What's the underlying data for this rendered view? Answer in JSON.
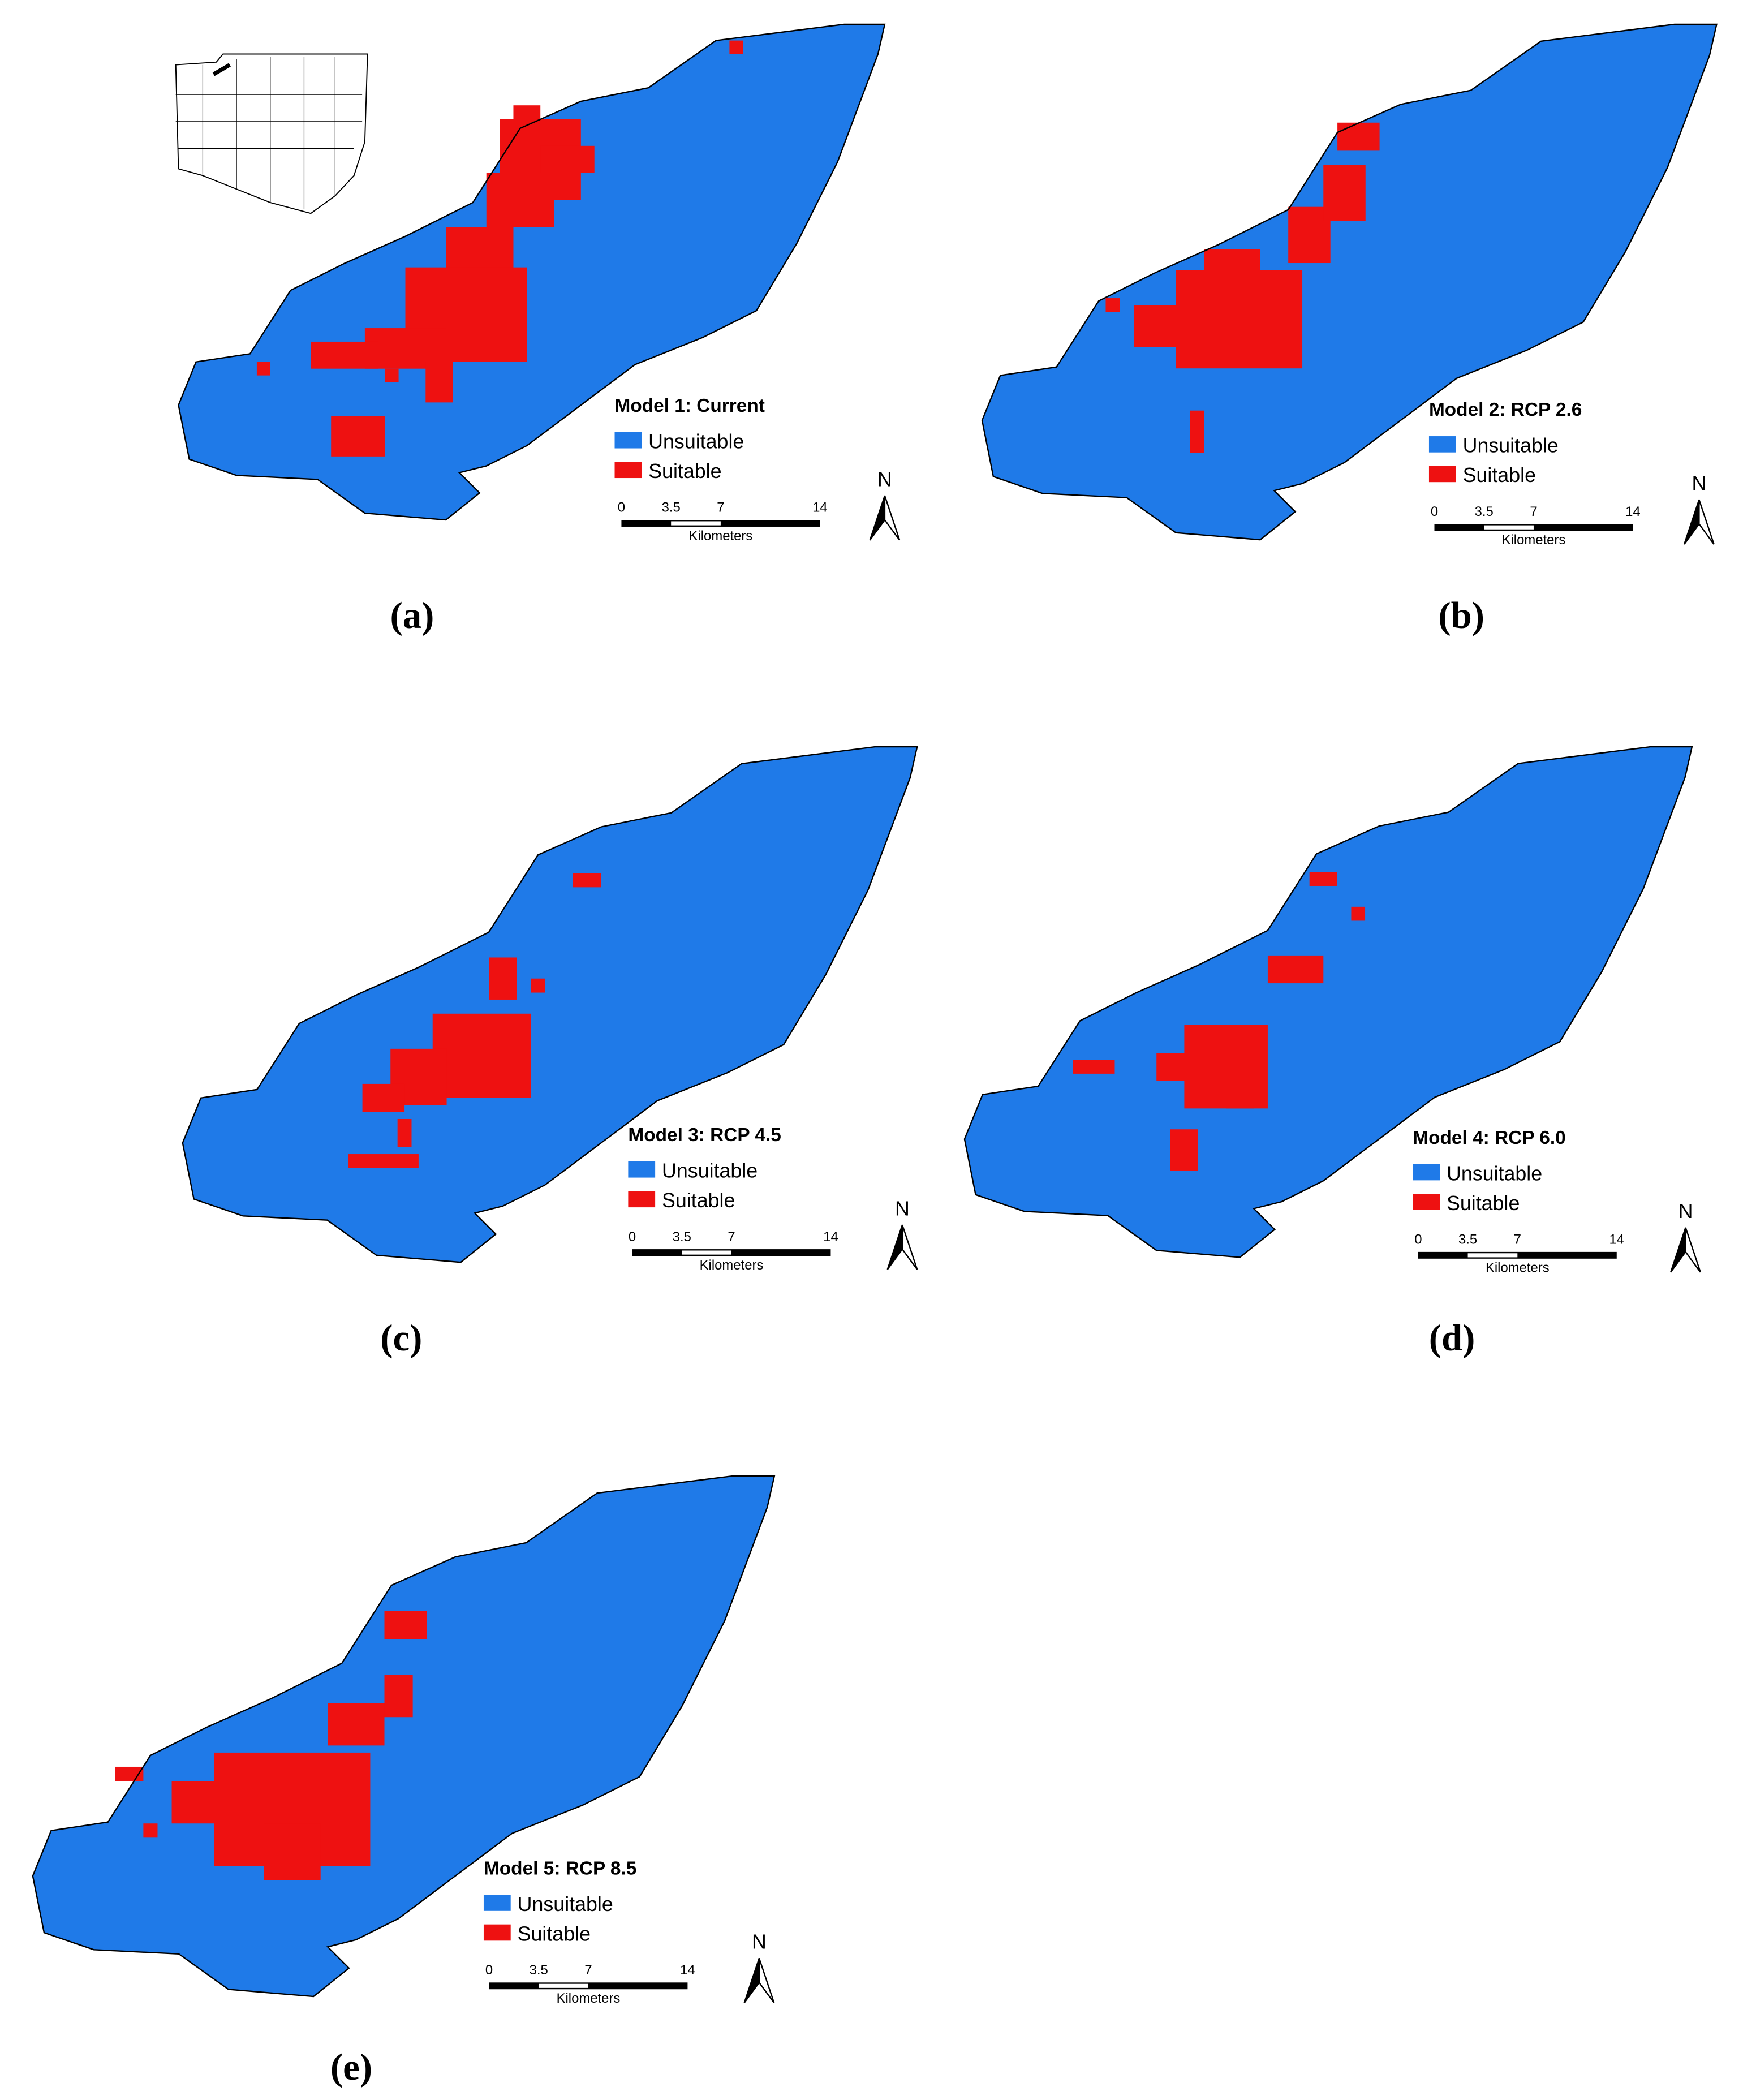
{
  "panels": [
    {
      "label": "(a)",
      "title": "Model 1: Current",
      "legend": [
        "Unsuitable",
        "Suitable"
      ],
      "scale": {
        "ticks": [
          0,
          3.5,
          7,
          14
        ],
        "unit": "Kilometers"
      },
      "north": "N"
    },
    {
      "label": "(b)",
      "title": "Model 2: RCP 2.6",
      "legend": [
        "Unsuitable",
        "Suitable"
      ],
      "scale": {
        "ticks": [
          0,
          3.5,
          7,
          14
        ],
        "unit": "Kilometers"
      },
      "north": "N"
    },
    {
      "label": "(c)",
      "title": "Model 3: RCP 4.5",
      "legend": [
        "Unsuitable",
        "Suitable"
      ],
      "scale": {
        "ticks": [
          0,
          3.5,
          7,
          14
        ],
        "unit": "Kilometers"
      },
      "north": "N"
    },
    {
      "label": "(d)",
      "title": "Model 4: RCP 6.0",
      "legend": [
        "Unsuitable",
        "Suitable"
      ],
      "scale": {
        "ticks": [
          0,
          3.5,
          7,
          14
        ],
        "unit": "Kilometers"
      },
      "north": "N"
    },
    {
      "label": "(e)",
      "title": "Model 5: RCP 8.5",
      "legend": [
        "Unsuitable",
        "Suitable"
      ],
      "scale": {
        "ticks": [
          0,
          3.5,
          7,
          14
        ],
        "unit": "Kilometers"
      },
      "north": "N"
    }
  ]
}
